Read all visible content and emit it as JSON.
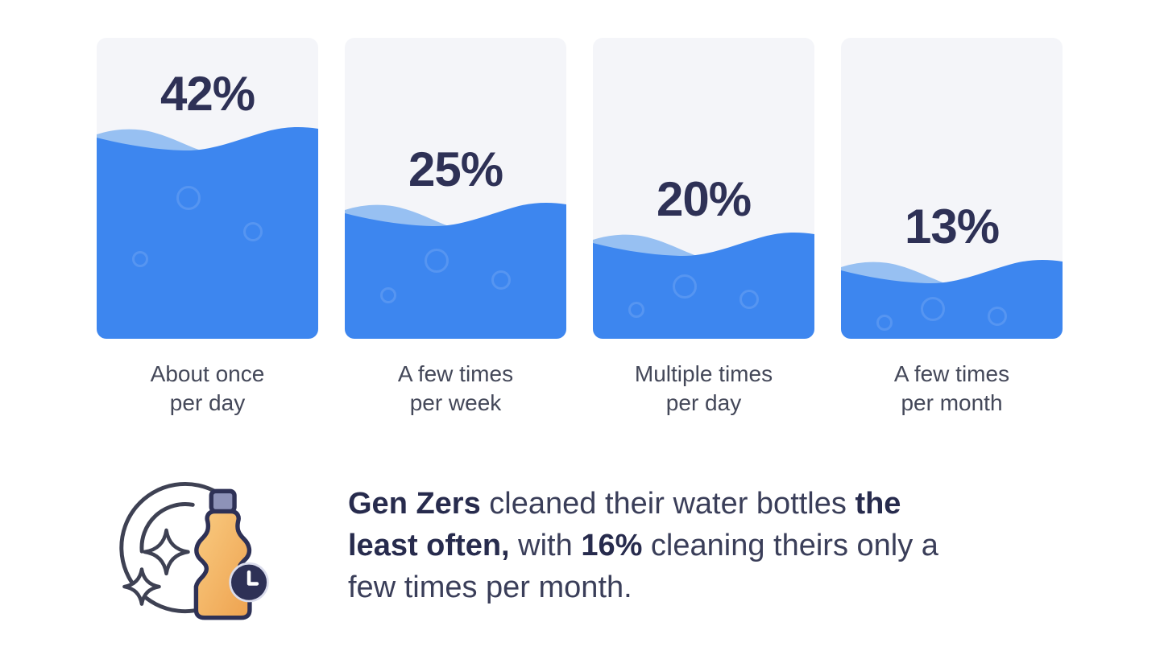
{
  "chart_data": {
    "type": "bar",
    "categories": [
      "About once per day",
      "A few times per week",
      "Multiple times per day",
      "A few times per month"
    ],
    "values": [
      42,
      25,
      20,
      13
    ],
    "unit": "%",
    "bar_style": "liquid-fill water tubes with wave tops",
    "annotation": "Gen Zers cleaned their water bottles the least often, with 16% cleaning theirs only a few times per month.",
    "annotation_value": "16%"
  },
  "bars": [
    {
      "value": 42,
      "value_label": "42%",
      "label_lines": [
        "About once",
        "per day"
      ],
      "fill_percent": 71
    },
    {
      "value": 25,
      "value_label": "25%",
      "label_lines": [
        "A few times",
        "per week"
      ],
      "fill_percent": 46
    },
    {
      "value": 20,
      "value_label": "20%",
      "label_lines": [
        "Multiple times",
        "per day"
      ],
      "fill_percent": 36
    },
    {
      "value": 13,
      "value_label": "13%",
      "label_lines": [
        "A few times",
        "per month"
      ],
      "fill_percent": 27
    }
  ],
  "callout": {
    "icon": "water-bottle-sparkle-clock-icon",
    "lines": [
      [
        {
          "text": "Gen Zers",
          "bold": true
        },
        {
          "text": " cleaned their water bottles ",
          "bold": false
        },
        {
          "text": "the",
          "bold": true
        }
      ],
      [
        {
          "text": "least often,",
          "bold": true
        },
        {
          "text": " with ",
          "bold": false
        },
        {
          "text": "16%",
          "bold": true
        },
        {
          "text": " cleaning theirs only a",
          "bold": false
        }
      ],
      [
        {
          "text": "few times per month.",
          "bold": false
        }
      ]
    ]
  },
  "colors": {
    "water": "#3d86ef",
    "water_light": "#97c0f2",
    "tube_background": "#f4f5f9",
    "number_text": "#2e3156",
    "label_text": "#444859",
    "body_text": "#3a3e59",
    "bold_text": "#272b4d",
    "icon_outline": "#3e4153",
    "bottle_fill": "#f2ae5e",
    "bottle_cap": "#8d92b8",
    "clock_badge": "#2e3156",
    "page_background": "#ffffff"
  }
}
